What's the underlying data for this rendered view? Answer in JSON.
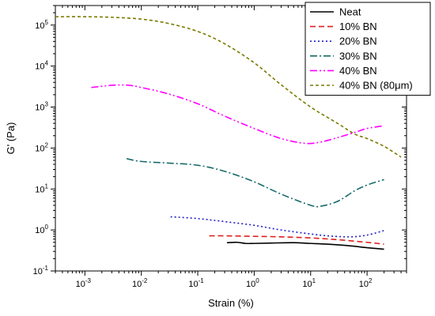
{
  "chart_data": {
    "type": "line",
    "xlabel": "Strain (%)",
    "ylabel": "G' (Pa)",
    "xscale": "log",
    "yscale": "log",
    "xlim": [
      0.0003,
      500
    ],
    "ylim": [
      0.1,
      300000
    ],
    "grid": false,
    "legend_position": "top-right",
    "x_tick_labels": [
      "10-3",
      "10-2",
      "10-1",
      "100",
      "101",
      "102"
    ],
    "y_tick_labels": [
      "10-1",
      "100",
      "101",
      "102",
      "103",
      "104",
      "105"
    ],
    "series": [
      {
        "name": "Neat",
        "color": "#000000",
        "dash": "solid",
        "points": [
          [
            0.33,
            0.49
          ],
          [
            0.5,
            0.5
          ],
          [
            0.7,
            0.47
          ],
          [
            1,
            0.47
          ],
          [
            2,
            0.48
          ],
          [
            5,
            0.49
          ],
          [
            10,
            0.47
          ],
          [
            20,
            0.45
          ],
          [
            50,
            0.41
          ],
          [
            100,
            0.37
          ],
          [
            200,
            0.34
          ]
        ]
      },
      {
        "name": "10% BN",
        "color": "#e02020",
        "dash": "dashed",
        "points": [
          [
            0.16,
            0.72
          ],
          [
            0.3,
            0.72
          ],
          [
            1,
            0.7
          ],
          [
            3,
            0.68
          ],
          [
            10,
            0.64
          ],
          [
            30,
            0.58
          ],
          [
            100,
            0.5
          ],
          [
            200,
            0.45
          ]
        ]
      },
      {
        "name": "20% BN",
        "color": "#2020c8",
        "dash": "dotted",
        "points": [
          [
            0.033,
            2.1
          ],
          [
            0.1,
            1.9
          ],
          [
            0.3,
            1.6
          ],
          [
            1,
            1.3
          ],
          [
            3,
            1.0
          ],
          [
            10,
            0.8
          ],
          [
            20,
            0.72
          ],
          [
            50,
            0.68
          ],
          [
            100,
            0.75
          ],
          [
            200,
            0.97
          ]
        ]
      },
      {
        "name": "30% BN",
        "color": "#1a6b6b",
        "dash": "dashdot",
        "points": [
          [
            0.0055,
            55
          ],
          [
            0.01,
            47
          ],
          [
            0.03,
            43
          ],
          [
            0.1,
            38
          ],
          [
            0.3,
            27
          ],
          [
            1,
            15
          ],
          [
            3,
            7.5
          ],
          [
            10,
            4.0
          ],
          [
            15,
            3.8
          ],
          [
            30,
            5.0
          ],
          [
            60,
            9
          ],
          [
            100,
            12.5
          ],
          [
            200,
            17
          ]
        ]
      },
      {
        "name": "40% BN",
        "color": "#ff00ff",
        "dash": "dashdotdot",
        "points": [
          [
            0.0013,
            3000
          ],
          [
            0.003,
            3400
          ],
          [
            0.006,
            3400
          ],
          [
            0.01,
            3000
          ],
          [
            0.03,
            2100
          ],
          [
            0.1,
            1200
          ],
          [
            0.3,
            600
          ],
          [
            1,
            300
          ],
          [
            3,
            170
          ],
          [
            8,
            130
          ],
          [
            15,
            140
          ],
          [
            30,
            180
          ],
          [
            60,
            240
          ],
          [
            100,
            300
          ],
          [
            200,
            350
          ]
        ]
      },
      {
        "name": "40% BN (80μm)",
        "color": "#7a7a00",
        "dash": "shortdash",
        "points": [
          [
            0.0003,
            160000
          ],
          [
            0.001,
            160000
          ],
          [
            0.003,
            155000
          ],
          [
            0.01,
            140000
          ],
          [
            0.03,
            110000
          ],
          [
            0.1,
            70000
          ],
          [
            0.3,
            35000
          ],
          [
            1,
            12000
          ],
          [
            3,
            3500
          ],
          [
            10,
            1000
          ],
          [
            30,
            400
          ],
          [
            60,
            220
          ],
          [
            100,
            170
          ],
          [
            200,
            110
          ],
          [
            400,
            60
          ]
        ]
      }
    ]
  }
}
